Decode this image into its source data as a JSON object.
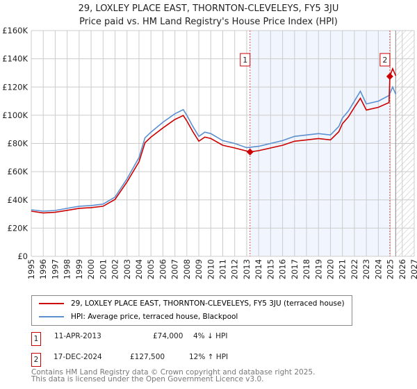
{
  "chart_data": {
    "type": "line",
    "title": "29, LOXLEY PLACE EAST, THORNTON-CLEVELEYS, FY5 3JU",
    "subtitle": "Price paid vs. HM Land Registry's House Price Index (HPI)",
    "xlim": [
      1995,
      2027
    ],
    "ylim": [
      0,
      160000
    ],
    "x_ticks": [
      "1995",
      "1996",
      "1997",
      "1998",
      "1999",
      "2000",
      "2001",
      "2002",
      "2003",
      "2004",
      "2005",
      "2006",
      "2007",
      "2008",
      "2009",
      "2010",
      "2011",
      "2012",
      "2013",
      "2014",
      "2015",
      "2016",
      "2017",
      "2018",
      "2019",
      "2020",
      "2021",
      "2022",
      "2023",
      "2024",
      "2025",
      "2026",
      "2027"
    ],
    "y_ticks": [
      {
        "v": 0,
        "label": "£0"
      },
      {
        "v": 20000,
        "label": "£20K"
      },
      {
        "v": 40000,
        "label": "£40K"
      },
      {
        "v": 60000,
        "label": "£60K"
      },
      {
        "v": 80000,
        "label": "£80K"
      },
      {
        "v": 100000,
        "label": "£100K"
      },
      {
        "v": 120000,
        "label": "£120K"
      },
      {
        "v": 140000,
        "label": "£140K"
      },
      {
        "v": 160000,
        "label": "£160K"
      }
    ],
    "grid": true,
    "shaded_range": [
      2013.28,
      2024.96
    ],
    "future_hatch_from": 2025.45,
    "series": [
      {
        "name": "29, LOXLEY PLACE EAST, THORNTON-CLEVELEYS, FY5 3JU (terraced house)",
        "color": "#cc0000",
        "x": [
          1995,
          1996,
          1997,
          1998,
          1999,
          2000,
          2001,
          2002,
          2003,
          2004,
          2004.5,
          2005,
          2006,
          2007,
          2007.7,
          2008,
          2008.5,
          2009,
          2009.5,
          2010,
          2011,
          2012,
          2013.28,
          2014,
          2015,
          2016,
          2017,
          2018,
          2019,
          2020,
          2020.7,
          2021,
          2021.5,
          2022,
          2022.5,
          2023,
          2024,
          2024.9,
          2024.96,
          2025.2,
          2025.45
        ],
        "y": [
          32000,
          30700,
          31200,
          32600,
          34000,
          34500,
          35500,
          40300,
          52800,
          67000,
          80500,
          84500,
          91000,
          97000,
          99800,
          96000,
          88300,
          81600,
          84500,
          83500,
          78700,
          76800,
          74000,
          74900,
          76800,
          78700,
          81600,
          82500,
          83500,
          82500,
          88300,
          94000,
          98800,
          105600,
          112000,
          103700,
          105600,
          109000,
          127500,
          133000,
          128000
        ]
      },
      {
        "name": "HPI: Average price, terraced house, Blackpool",
        "color": "#5b8fd0",
        "x": [
          1995,
          1996,
          1997,
          1998,
          1999,
          2000,
          2001,
          2002,
          2003,
          2004,
          2004.5,
          2005,
          2006,
          2007,
          2007.7,
          2008,
          2008.5,
          2009,
          2009.5,
          2010,
          2011,
          2012,
          2013,
          2014,
          2015,
          2016,
          2017,
          2018,
          2019,
          2020,
          2020.7,
          2021,
          2021.5,
          2022,
          2022.5,
          2023,
          2024,
          2024.9,
          2025.2,
          2025.45
        ],
        "y": [
          33000,
          32000,
          32500,
          34000,
          35500,
          36000,
          37000,
          42000,
          55000,
          70000,
          84000,
          88000,
          95000,
          101000,
          104000,
          100000,
          92000,
          85000,
          88000,
          87000,
          82000,
          80000,
          77000,
          78000,
          80000,
          82000,
          85000,
          86000,
          87000,
          86000,
          92000,
          98000,
          103000,
          110000,
          117000,
          108000,
          110000,
          114000,
          120000,
          115000
        ]
      }
    ],
    "annotations": [
      {
        "label": "1",
        "x": 2013.28,
        "y": 74000
      },
      {
        "label": "2",
        "x": 2024.96,
        "y": 127500
      }
    ]
  },
  "legend": {
    "items": [
      {
        "label": "29, LOXLEY PLACE EAST, THORNTON-CLEVELEYS, FY5 3JU (terraced house)",
        "color": "#cc0000"
      },
      {
        "label": "HPI: Average price, terraced house, Blackpool",
        "color": "#5b8fd0"
      }
    ]
  },
  "transactions": [
    {
      "num": "1",
      "date": "11-APR-2013",
      "price": "£74,000",
      "hpi": "4% ↓ HPI"
    },
    {
      "num": "2",
      "date": "17-DEC-2024",
      "price": "£127,500",
      "hpi": "12% ↑ HPI"
    }
  ],
  "footer": {
    "line1": "Contains HM Land Registry data © Crown copyright and database right 2025.",
    "line2": "This data is licensed under the Open Government Licence v3.0."
  }
}
